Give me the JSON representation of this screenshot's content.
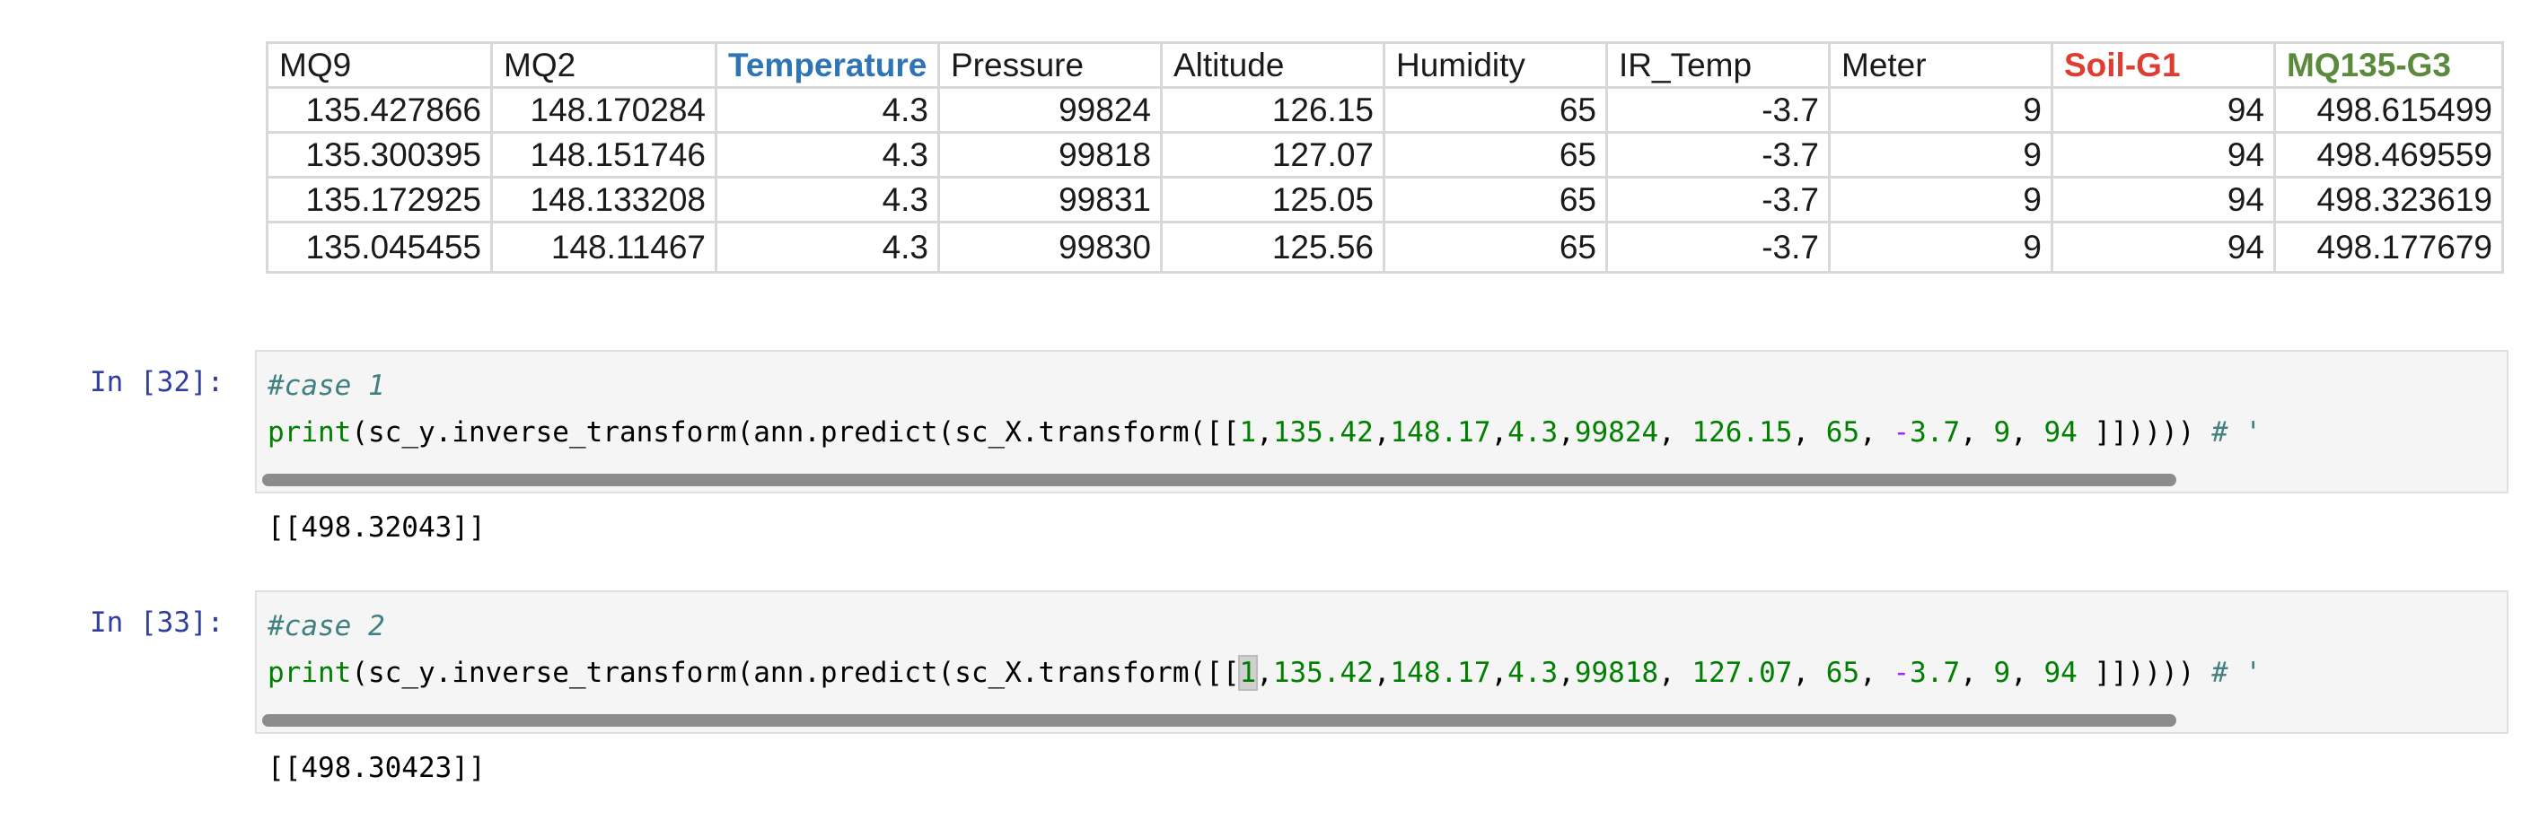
{
  "sheet": {
    "headers": [
      {
        "label": "MQ9",
        "color": "#1a1a1a"
      },
      {
        "label": "MQ2",
        "color": "#1a1a1a"
      },
      {
        "label": "Temperature",
        "color": "#2e75b6"
      },
      {
        "label": "Pressure",
        "color": "#1a1a1a"
      },
      {
        "label": "Altitude",
        "color": "#1a1a1a"
      },
      {
        "label": "Humidity",
        "color": "#1a1a1a"
      },
      {
        "label": "IR_Temp",
        "color": "#1a1a1a"
      },
      {
        "label": "Meter",
        "color": "#1a1a1a"
      },
      {
        "label": "Soil-G1",
        "color": "#e03c31"
      },
      {
        "label": "MQ135-G3",
        "color": "#5b8a3c"
      }
    ],
    "rows": [
      [
        "135.427866",
        "148.170284",
        "4.3",
        "99824",
        "126.15",
        "65",
        "-3.7",
        "9",
        "94",
        "498.615499"
      ],
      [
        "135.300395",
        "148.151746",
        "4.3",
        "99818",
        "127.07",
        "65",
        "-3.7",
        "9",
        "94",
        "498.469559"
      ],
      [
        "135.172925",
        "148.133208",
        "4.3",
        "99831",
        "125.05",
        "65",
        "-3.7",
        "9",
        "94",
        "498.323619"
      ],
      [
        "135.045455",
        "148.11467",
        "4.3",
        "99830",
        "125.56",
        "65",
        "-3.7",
        "9",
        "94",
        "498.177679"
      ]
    ]
  },
  "cells": [
    {
      "prompt": "In [32]:",
      "comment": "#case 1",
      "code": {
        "p1": "print",
        "p2": "(sc_y.inverse_transform(ann.predict(sc_X.transform([[",
        "n1": "1",
        "n2": "135.42",
        "n3": "148.17",
        "n4": "4.3",
        "n5": "99824",
        "n6": "126.15",
        "n7": "65",
        "neg": "-",
        "n8": "3.7",
        "n9": "9",
        "n10": "94",
        "tail": " ]])))) ",
        "cmt": "# '"
      },
      "output": "[[498.32043]]"
    },
    {
      "prompt": "In [33]:",
      "comment": "#case 2",
      "code": {
        "p1": "print",
        "p2": "(sc_y.inverse_transform(ann.predict(sc_X.transform([[",
        "n1": "1",
        "n2": "135.42",
        "n3": "148.17",
        "n4": "4.3",
        "n5": "99818",
        "n6": "127.07",
        "n7": "65",
        "neg": "-",
        "n8": "3.7",
        "n9": "9",
        "n10": "94",
        "tail": " ]])))) ",
        "cmt": "# '"
      },
      "output": "[[498.30423]]"
    }
  ]
}
